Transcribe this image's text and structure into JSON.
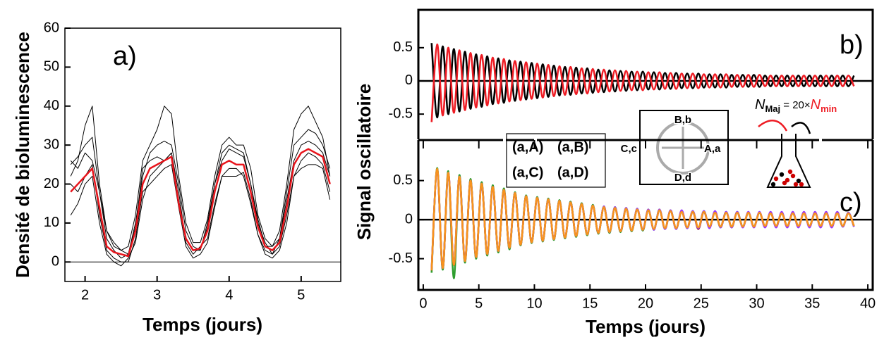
{
  "chart_data": [
    {
      "type": "line",
      "label": "a)",
      "xlabel": "Temps (jours)",
      "ylabel": "Densité de bioluminescence",
      "x": [
        1.8,
        1.9,
        2.0,
        2.1,
        2.2,
        2.3,
        2.4,
        2.5,
        2.6,
        2.7,
        2.8,
        2.9,
        3.0,
        3.1,
        3.2,
        3.3,
        3.4,
        3.5,
        3.6,
        3.7,
        3.8,
        3.9,
        4.0,
        4.1,
        4.2,
        4.3,
        4.4,
        4.5,
        4.6,
        4.7,
        4.8,
        4.9,
        5.0,
        5.1,
        5.2,
        5.3,
        5.4
      ],
      "xlim": [
        1.72,
        5.55
      ],
      "xticks": [
        2,
        3,
        4,
        5
      ],
      "ylim": [
        -5,
        60
      ],
      "yticks": [
        0,
        10,
        20,
        30,
        40,
        50,
        60
      ],
      "series": [
        {
          "color": "#000000",
          "values": [
            25,
            27,
            30,
            32,
            18,
            6,
            3,
            1,
            2,
            10,
            22,
            28,
            30,
            31,
            30,
            20,
            8,
            4,
            3,
            10,
            20,
            28,
            30,
            29,
            28,
            20,
            10,
            5,
            2,
            6,
            18,
            30,
            32,
            34,
            33,
            30,
            24
          ]
        },
        {
          "color": "#000000",
          "values": [
            12,
            15,
            20,
            22,
            10,
            2,
            0,
            -1,
            1,
            5,
            16,
            22,
            24,
            26,
            28,
            18,
            5,
            2,
            4,
            6,
            15,
            22,
            24,
            24,
            22,
            15,
            7,
            2,
            1,
            3,
            10,
            22,
            26,
            28,
            27,
            25,
            18
          ]
        },
        {
          "color": "#000000",
          "values": [
            22,
            26,
            35,
            40,
            20,
            8,
            5,
            3,
            4,
            12,
            26,
            30,
            34,
            40,
            38,
            22,
            10,
            5,
            5,
            11,
            22,
            30,
            32,
            30,
            30,
            24,
            12,
            6,
            4,
            8,
            20,
            34,
            38,
            40,
            36,
            32,
            22
          ]
        },
        {
          "color": "#000000",
          "values": [
            20,
            18,
            22,
            25,
            12,
            3,
            1,
            0,
            0,
            6,
            18,
            20,
            22,
            24,
            25,
            14,
            4,
            1,
            2,
            5,
            14,
            22,
            22,
            22,
            23,
            16,
            7,
            3,
            2,
            4,
            12,
            22,
            24,
            25,
            25,
            24,
            16
          ]
        },
        {
          "color": "#000000",
          "values": [
            26,
            24,
            28,
            26,
            18,
            8,
            4,
            3,
            2,
            9,
            24,
            26,
            27,
            26,
            28,
            16,
            6,
            3,
            3,
            9,
            20,
            26,
            29,
            28,
            27,
            20,
            11,
            4,
            4,
            6,
            16,
            26,
            30,
            31,
            30,
            28,
            22
          ]
        },
        {
          "color": "#e8141b",
          "values": [
            18,
            20,
            22,
            24,
            14,
            4,
            2.5,
            2,
            1.5,
            8,
            20,
            24,
            25,
            26,
            27,
            15,
            6,
            3,
            3.5,
            8,
            18,
            25,
            26,
            25,
            25,
            18,
            9,
            4,
            3,
            5,
            14,
            25,
            28,
            29,
            28,
            27,
            20
          ]
        }
      ]
    },
    {
      "type": "line",
      "label": "b)",
      "ylabel": "Signal oscillatoire",
      "x": [
        0.75,
        1.25,
        1.75,
        2.25,
        2.75,
        3.25,
        3.75,
        4.25,
        4.75,
        5.25,
        5.75,
        6.25,
        6.75,
        7.25,
        7.75,
        8.25,
        8.75,
        9.25,
        9.75,
        10.25,
        10.75,
        11.25,
        11.75,
        12.25,
        12.75,
        13.25,
        13.75,
        14.25,
        14.75,
        15.25,
        15.75,
        16.25,
        16.75,
        17.25,
        17.75,
        18.25,
        18.75,
        19.25,
        19.75,
        20.25,
        20.75,
        21.25,
        21.75,
        22.25,
        22.75,
        23.25,
        23.75,
        24.25,
        24.75,
        25.25,
        25.75,
        26.25,
        26.75,
        27.25,
        27.75,
        28.25,
        28.75,
        29.25,
        29.75,
        30.25,
        30.75,
        31.25,
        31.75,
        32.25,
        32.75,
        33.25,
        33.75,
        34.25,
        34.75,
        35.25,
        35.75,
        36.25,
        36.75,
        37.25,
        37.75,
        38.25,
        38.75
      ],
      "xlim": [
        -0.44,
        40.44
      ],
      "ylim": [
        -0.88,
        1.07
      ],
      "yticks": [
        -0.5,
        0,
        0.5
      ],
      "series": [
        {
          "color": "#000000",
          "values": [
            0.57,
            -0.55,
            0.52,
            -0.5,
            0.48,
            -0.46,
            0.44,
            -0.42,
            0.4,
            -0.39,
            0.37,
            -0.35,
            0.34,
            -0.33,
            0.31,
            -0.3,
            0.29,
            -0.28,
            0.27,
            -0.26,
            0.25,
            -0.24,
            0.23,
            -0.22,
            0.21,
            -0.21,
            0.2,
            -0.19,
            0.19,
            -0.18,
            0.17,
            -0.17,
            0.16,
            -0.16,
            0.15,
            -0.15,
            0.14,
            -0.14,
            0.14,
            -0.13,
            0.13,
            -0.13,
            0.12,
            -0.12,
            0.12,
            -0.11,
            0.11,
            -0.11,
            0.11,
            -0.1,
            0.1,
            -0.1,
            0.1,
            -0.1,
            0.09,
            -0.09,
            0.09,
            -0.09,
            0.09,
            -0.09,
            0.08,
            -0.08,
            0.08,
            -0.08,
            0.08,
            -0.08,
            0.08,
            -0.08,
            0.08,
            -0.08,
            0.08,
            -0.08,
            0.08,
            -0.08,
            0.08,
            -0.08,
            0.08
          ]
        },
        {
          "color": "#ee1c24",
          "values": [
            -0.62,
            0.55,
            -0.52,
            0.5,
            -0.48,
            0.46,
            -0.44,
            0.42,
            -0.4,
            0.39,
            -0.37,
            0.35,
            -0.34,
            0.33,
            -0.31,
            0.3,
            -0.29,
            0.28,
            -0.27,
            0.26,
            -0.25,
            0.24,
            -0.23,
            0.22,
            -0.21,
            0.21,
            -0.2,
            0.19,
            -0.19,
            0.18,
            -0.17,
            0.17,
            -0.16,
            0.16,
            -0.15,
            0.15,
            -0.14,
            0.14,
            -0.14,
            0.13,
            -0.13,
            0.13,
            -0.12,
            0.12,
            -0.12,
            0.11,
            -0.11,
            0.11,
            -0.11,
            0.1,
            -0.1,
            0.1,
            -0.1,
            0.1,
            -0.09,
            0.09,
            -0.09,
            0.09,
            -0.09,
            0.09,
            -0.08,
            0.08,
            -0.08,
            0.08,
            -0.08,
            0.08,
            -0.08,
            0.08,
            -0.08,
            0.08,
            -0.08,
            0.08,
            -0.08,
            0.08,
            -0.08,
            0.08,
            -0.08
          ]
        }
      ]
    },
    {
      "type": "line",
      "label": "c)",
      "xlabel": "Temps (jours)",
      "x": [
        0.75,
        1.25,
        1.75,
        2.25,
        2.75,
        3.25,
        3.75,
        4.25,
        4.75,
        5.25,
        5.75,
        6.25,
        6.75,
        7.25,
        7.75,
        8.25,
        8.75,
        9.25,
        9.75,
        10.25,
        10.75,
        11.25,
        11.75,
        12.25,
        12.75,
        13.25,
        13.75,
        14.25,
        14.75,
        15.25,
        15.75,
        16.25,
        16.75,
        17.25,
        17.75,
        18.25,
        18.75,
        19.25,
        19.75,
        20.25,
        20.75,
        21.25,
        21.75,
        22.25,
        22.75,
        23.25,
        23.75,
        24.25,
        24.75,
        25.25,
        25.75,
        26.25,
        26.75,
        27.25,
        27.75,
        28.25,
        28.75,
        29.25,
        29.75,
        30.25,
        30.75,
        31.25,
        31.75,
        32.25,
        32.75,
        33.25,
        33.75,
        34.25,
        34.75,
        35.25,
        35.75,
        36.25,
        36.75,
        37.25,
        37.75,
        38.25,
        38.75
      ],
      "xlim": [
        -0.44,
        40.44
      ],
      "xticks": [
        0,
        5,
        10,
        15,
        20,
        25,
        30,
        35,
        40
      ],
      "ylim": [
        -0.9,
        0.92
      ],
      "yticks": [
        -0.5,
        0,
        0.5
      ],
      "series": [
        {
          "name": "(a,A)",
          "color": "#f7941d",
          "values": [
            -0.65,
            0.65,
            -0.62,
            0.6,
            -0.58,
            0.55,
            -0.53,
            0.5,
            -0.48,
            0.46,
            -0.44,
            0.42,
            -0.4,
            0.38,
            -0.36,
            0.34,
            -0.32,
            0.3,
            -0.29,
            0.28,
            -0.27,
            0.26,
            -0.25,
            0.24,
            -0.23,
            0.22,
            -0.21,
            0.2,
            -0.19,
            0.18,
            -0.17,
            0.16,
            -0.16,
            0.15,
            -0.15,
            0.14,
            -0.14,
            0.13,
            -0.13,
            0.12,
            -0.12,
            0.12,
            -0.11,
            0.11,
            -0.11,
            0.1,
            -0.1,
            0.1,
            -0.1,
            0.1,
            -0.09,
            0.09,
            -0.09,
            0.09,
            -0.09,
            0.09,
            -0.09,
            0.09,
            -0.09,
            0.09,
            -0.08,
            0.08,
            -0.08,
            0.08,
            -0.08,
            0.08,
            -0.08,
            0.08,
            -0.08,
            0.08,
            -0.08,
            0.08,
            -0.08,
            0.08,
            -0.08,
            0.08,
            -0.08
          ]
        },
        {
          "name": "(a,B)",
          "color": "#9933ff",
          "values": [
            -0.64,
            0.64,
            -0.62,
            0.6,
            -0.57,
            0.55,
            -0.53,
            0.5,
            -0.48,
            0.46,
            -0.44,
            0.42,
            -0.4,
            0.38,
            -0.36,
            0.34,
            -0.32,
            0.3,
            -0.29,
            0.28,
            -0.27,
            0.26,
            -0.25,
            0.24,
            -0.23,
            0.22,
            -0.21,
            0.2,
            -0.19,
            0.18,
            -0.17,
            0.17,
            -0.16,
            0.16,
            -0.15,
            0.15,
            -0.14,
            0.14,
            -0.13,
            0.13,
            -0.13,
            0.13,
            -0.12,
            0.12,
            -0.12,
            0.12,
            -0.11,
            0.11,
            -0.11,
            0.11,
            -0.11,
            0.11,
            -0.1,
            0.1,
            -0.1,
            0.1,
            -0.1,
            0.1,
            -0.1,
            0.1,
            -0.1,
            0.1,
            -0.1,
            0.1,
            -0.1,
            0.1,
            -0.1,
            0.1,
            -0.1,
            0.1,
            -0.1,
            0.1,
            -0.1,
            0.1,
            -0.09,
            0.09,
            -0.09
          ]
        },
        {
          "name": "(a,C)",
          "color": "#8b1a1a",
          "values": [
            -0.65,
            0.64,
            -0.62,
            0.59,
            -0.58,
            0.55,
            -0.52,
            0.5,
            -0.48,
            0.46,
            -0.44,
            0.42,
            -0.4,
            0.38,
            -0.36,
            0.34,
            -0.32,
            0.3,
            -0.29,
            0.28,
            -0.27,
            0.26,
            -0.25,
            0.24,
            -0.23,
            0.22,
            -0.21,
            0.2,
            -0.19,
            0.18,
            -0.17,
            0.16,
            -0.16,
            0.15,
            -0.15,
            0.14,
            -0.14,
            0.13,
            -0.13,
            0.12,
            -0.12,
            0.12,
            -0.11,
            0.11,
            -0.11,
            0.1,
            -0.1,
            0.1,
            -0.12,
            0.1,
            -0.09,
            0.09,
            -0.09,
            0.09,
            -0.09,
            0.09,
            -0.09,
            0.09,
            -0.09,
            0.09,
            -0.08,
            0.08,
            -0.08,
            0.08,
            -0.08,
            0.08,
            -0.08,
            0.08,
            -0.08,
            0.08,
            -0.08,
            0.08,
            -0.08,
            0.08,
            -0.08,
            0.08,
            -0.08
          ]
        },
        {
          "name": "(a,D)",
          "color": "#2e9e2e",
          "values": [
            -0.68,
            0.66,
            -0.64,
            0.62,
            -0.75,
            0.57,
            -0.55,
            0.52,
            -0.5,
            0.48,
            -0.46,
            0.44,
            -0.42,
            0.4,
            -0.38,
            0.35,
            -0.33,
            0.31,
            -0.3,
            0.29,
            -0.28,
            0.27,
            -0.26,
            0.25,
            -0.24,
            0.23,
            -0.22,
            0.21,
            -0.2,
            0.19,
            -0.18,
            0.17,
            -0.17,
            0.16,
            -0.16,
            0.15,
            -0.15,
            0.14,
            -0.14,
            0.13,
            -0.13,
            0.13,
            -0.12,
            0.12,
            -0.12,
            0.11,
            -0.11,
            0.11,
            -0.11,
            0.11,
            -0.1,
            0.1,
            -0.1,
            0.1,
            -0.1,
            0.1,
            -0.09,
            0.09,
            -0.09,
            0.09,
            -0.09,
            0.09,
            -0.09,
            0.09,
            -0.09,
            0.09,
            -0.09,
            0.09,
            -0.09,
            0.09,
            -0.09,
            0.09,
            -0.09,
            0.09,
            -0.09,
            0.09,
            -0.09
          ]
        }
      ],
      "inset_labels": [
        {
          "text": "B,b",
          "color": "#9933ff"
        },
        {
          "text": "C,c",
          "color": "#333333"
        },
        {
          "text": "D,d",
          "color": "#2e9e2e"
        },
        {
          "text": "A,a",
          "color": "#ee1c24"
        }
      ],
      "formula": {
        "lhs": "N",
        "lhs_sub": "Maj",
        "op": " = 20×",
        "rhs": "N",
        "rhs_sub": "min"
      }
    }
  ]
}
